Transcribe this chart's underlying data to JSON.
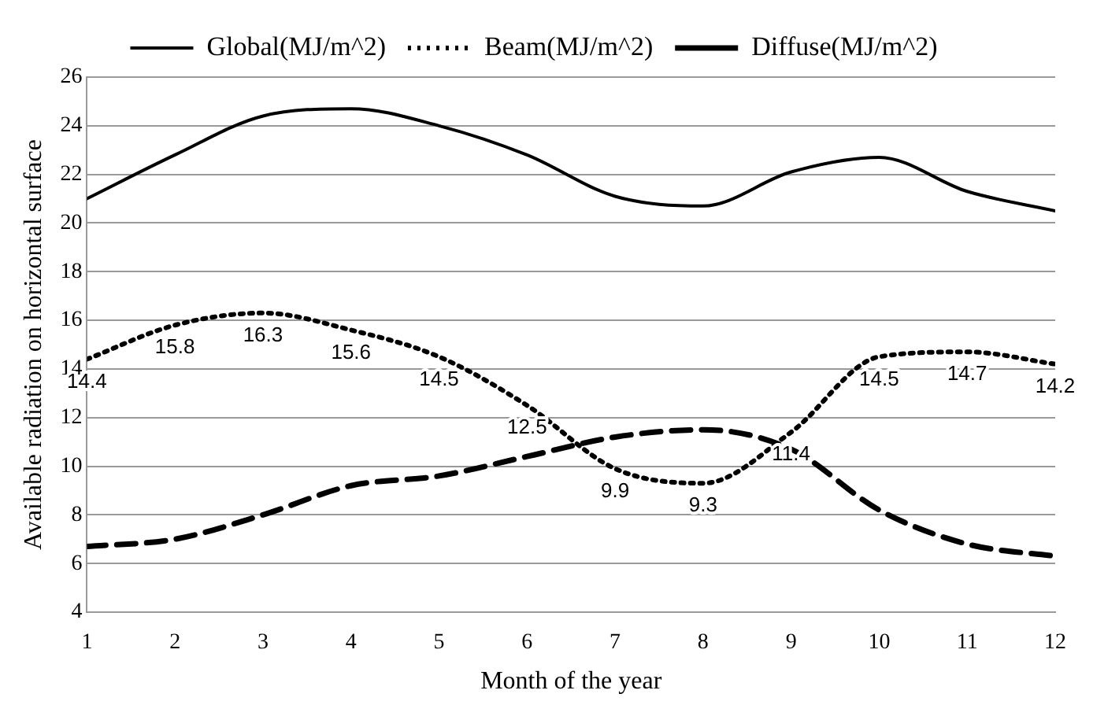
{
  "chart_data": {
    "type": "line",
    "xlabel": "Month of the year",
    "ylabel": "Available radiation on horizontal surface",
    "x": [
      1,
      2,
      3,
      4,
      5,
      6,
      7,
      8,
      9,
      10,
      11,
      12
    ],
    "xlim": [
      1,
      12
    ],
    "xticks": [
      1,
      2,
      3,
      4,
      5,
      6,
      7,
      8,
      9,
      10,
      11,
      12
    ],
    "ylim": [
      4,
      26
    ],
    "yticks": [
      4,
      6,
      8,
      10,
      12,
      14,
      16,
      18,
      20,
      22,
      24,
      26
    ],
    "grid": "y",
    "legend": "top",
    "marker": "none",
    "series": [
      {
        "name": "Global(MJ/m^2)",
        "color": "#000000",
        "line_style": "solid",
        "values": [
          21.0,
          22.8,
          24.4,
          24.7,
          24.0,
          22.8,
          21.1,
          20.7,
          22.1,
          22.7,
          21.3,
          20.5
        ]
      },
      {
        "name": "Beam(MJ/m^2)",
        "color": "#000000",
        "line_style": "dotted",
        "values": [
          14.4,
          15.8,
          16.3,
          15.6,
          14.5,
          12.5,
          9.9,
          9.3,
          11.4,
          14.5,
          14.7,
          14.2
        ],
        "value_labels": [
          "14.4",
          "15.8",
          "16.3",
          "15.6",
          "14.5",
          "12.5",
          "9.9",
          "9.3",
          "11.4",
          "14.5",
          "14.7",
          "14.2"
        ]
      },
      {
        "name": "Diffuse(MJ/m^2)",
        "color": "#000000",
        "line_style": "dashed",
        "values": [
          6.7,
          7.0,
          8.0,
          9.2,
          9.6,
          10.4,
          11.2,
          11.5,
          10.7,
          8.2,
          6.8,
          6.3
        ]
      }
    ]
  }
}
